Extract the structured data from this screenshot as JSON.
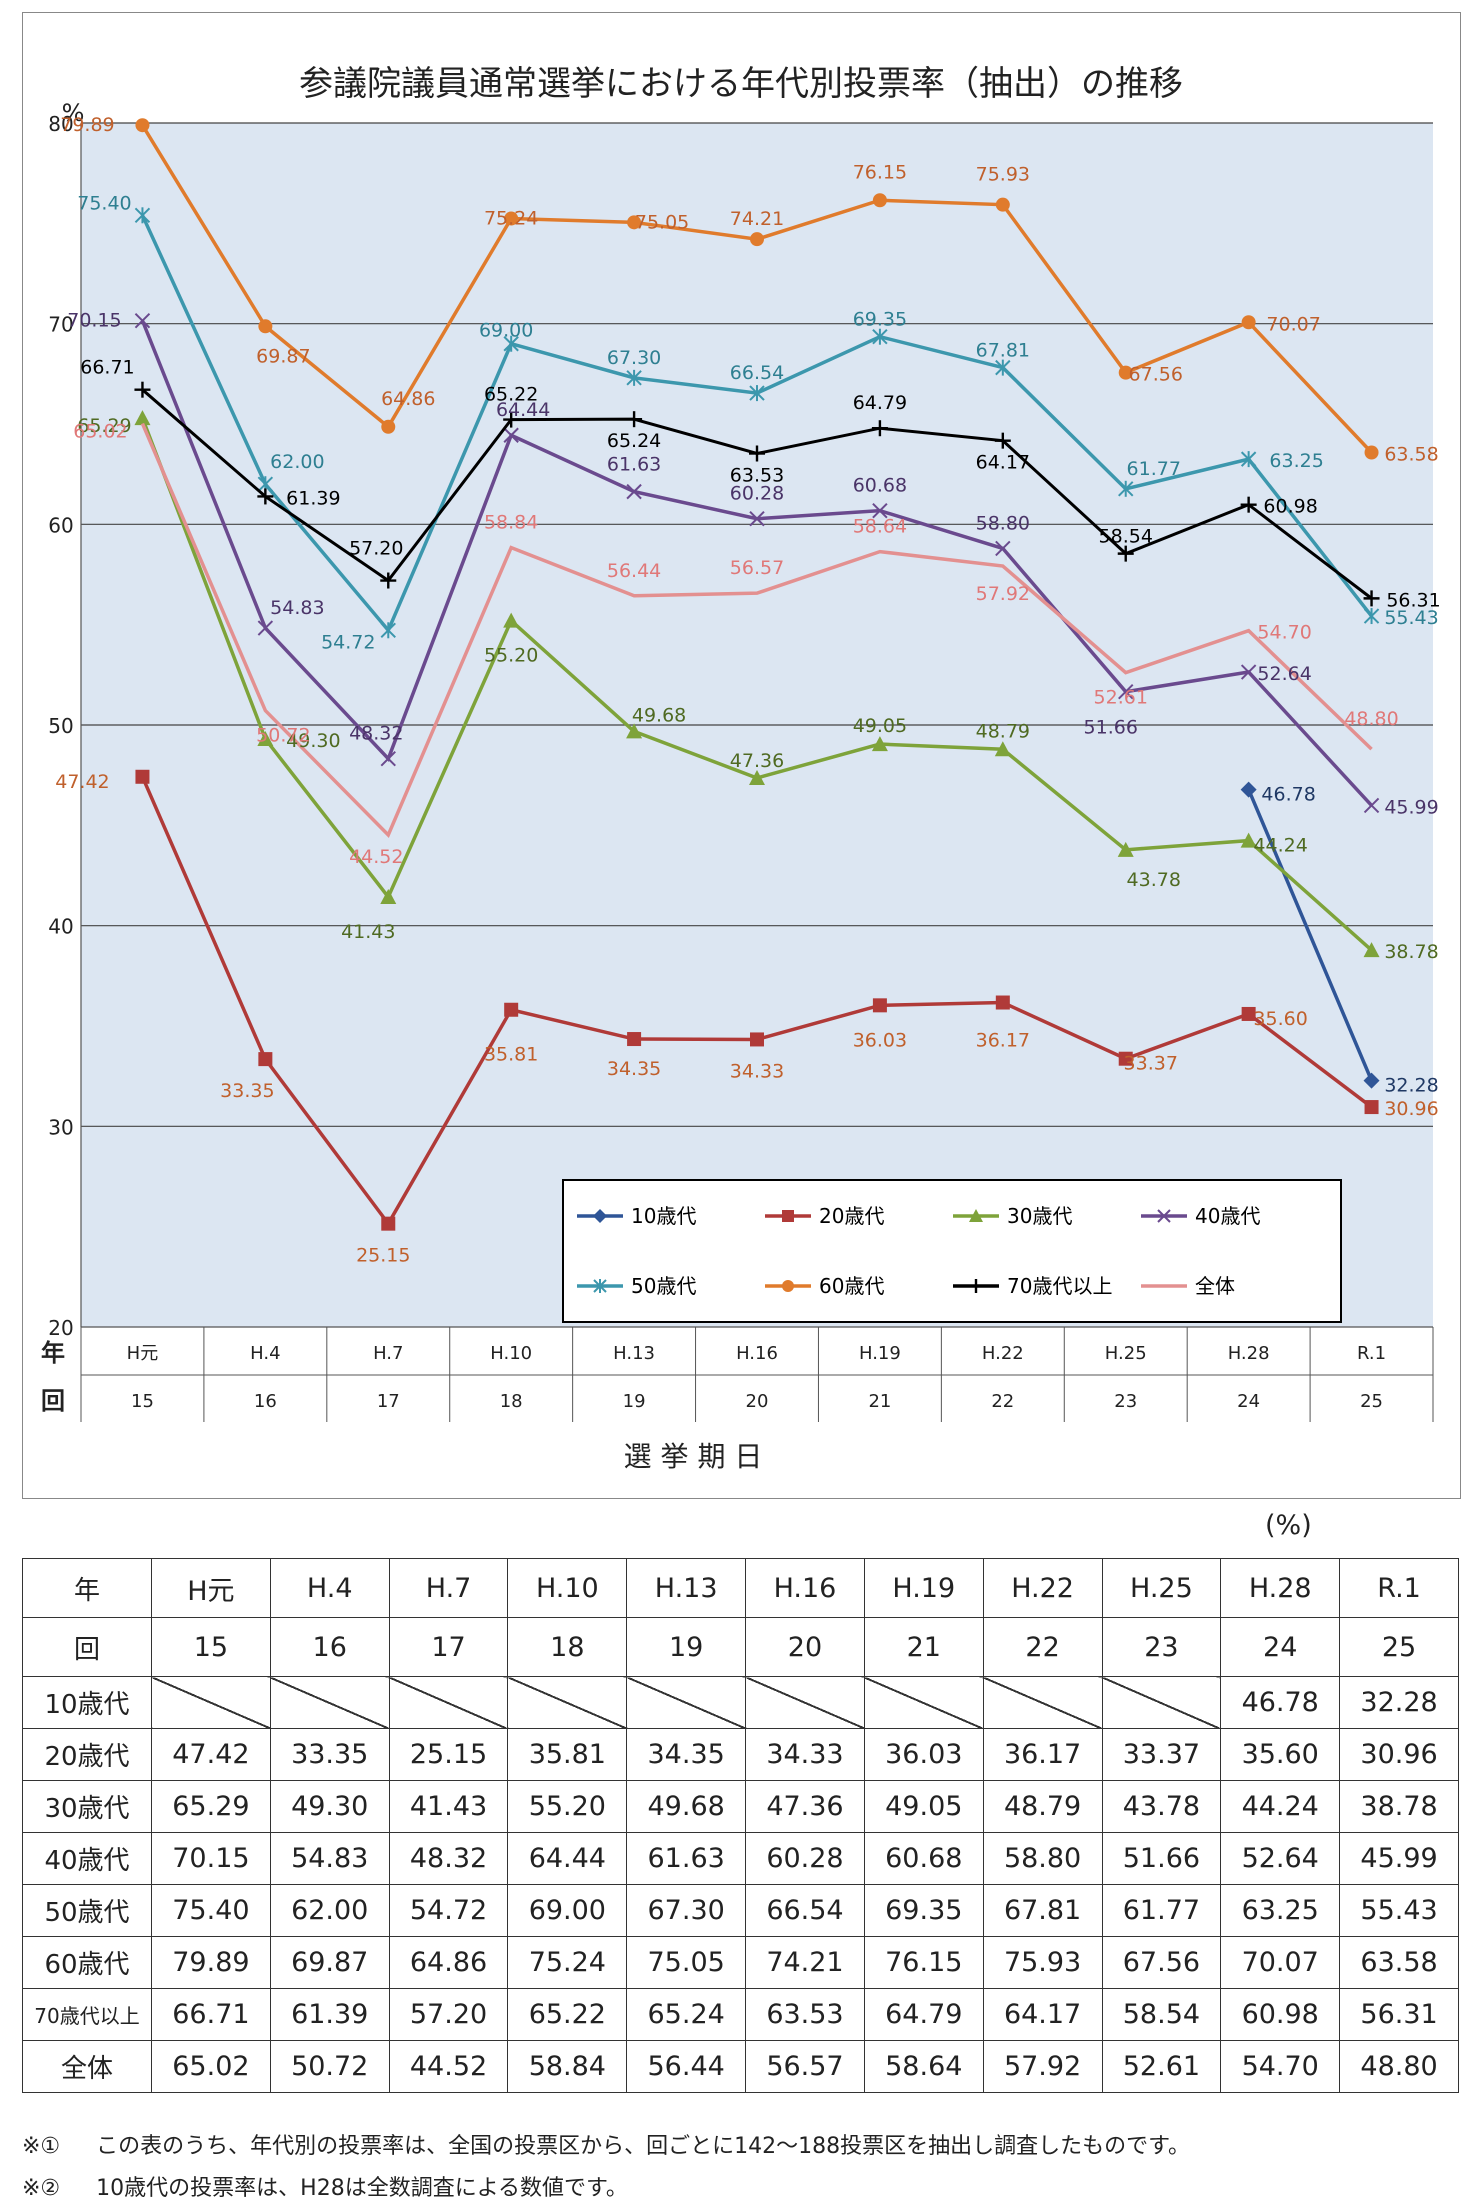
{
  "chart_data": {
    "type": "line",
    "title": "参議院議員通常選挙における年代別投票率（抽出）の推移",
    "y_unit": "%",
    "ylim": [
      20,
      80
    ],
    "yticks": [
      20,
      30,
      40,
      50,
      60,
      70,
      80
    ],
    "grid": true,
    "legend_position": "bottom-right inside",
    "x_row_labels": [
      "年",
      "回"
    ],
    "xlabel": "選 挙 期 日",
    "categories": [
      "H元",
      "H.4",
      "H.7",
      "H.10",
      "H.13",
      "H.16",
      "H.19",
      "H.22",
      "H.25",
      "H.28",
      "R.1"
    ],
    "rounds": [
      "15",
      "16",
      "17",
      "18",
      "19",
      "20",
      "21",
      "22",
      "23",
      "24",
      "25"
    ],
    "series": [
      {
        "name": "10歳代",
        "color": "#2f5597",
        "marker": "diamond",
        "values": [
          null,
          null,
          null,
          null,
          null,
          null,
          null,
          null,
          null,
          46.78,
          32.28
        ]
      },
      {
        "name": "20歳代",
        "color": "#b03a38",
        "marker": "square",
        "values": [
          47.42,
          33.35,
          25.15,
          35.81,
          34.35,
          34.33,
          36.03,
          36.17,
          33.37,
          35.6,
          30.96
        ]
      },
      {
        "name": "30歳代",
        "color": "#7ea33a",
        "marker": "triangle",
        "values": [
          65.29,
          49.3,
          41.43,
          55.2,
          49.68,
          47.36,
          49.05,
          48.79,
          43.78,
          44.24,
          38.78
        ]
      },
      {
        "name": "40歳代",
        "color": "#6a4a8e",
        "marker": "x",
        "values": [
          70.15,
          54.83,
          48.32,
          64.44,
          61.63,
          60.28,
          60.68,
          58.8,
          51.66,
          52.64,
          45.99
        ]
      },
      {
        "name": "50歳代",
        "color": "#3c97ad",
        "marker": "star",
        "values": [
          75.4,
          62.0,
          54.72,
          69.0,
          67.3,
          66.54,
          69.35,
          67.81,
          61.77,
          63.25,
          55.43
        ]
      },
      {
        "name": "60歳代",
        "color": "#e07b2c",
        "marker": "circle",
        "values": [
          79.89,
          69.87,
          64.86,
          75.24,
          75.05,
          74.21,
          76.15,
          75.93,
          67.56,
          70.07,
          63.58
        ]
      },
      {
        "name": "70歳代以上",
        "color": "#000000",
        "marker": "plus",
        "values": [
          66.71,
          61.39,
          57.2,
          65.22,
          65.24,
          63.53,
          64.79,
          64.17,
          58.54,
          60.98,
          56.31
        ]
      },
      {
        "name": "全体",
        "color": "#e39090",
        "marker": "none",
        "values": [
          65.02,
          50.72,
          44.52,
          58.84,
          56.44,
          56.57,
          58.64,
          57.92,
          52.61,
          54.7,
          48.8
        ]
      }
    ],
    "label_colors": {
      "10歳代": "#1f3864",
      "20歳代": "#c0602c",
      "30歳代": "#4f6a22",
      "40歳代": "#4a3468",
      "50歳代": "#2e7f91",
      "60歳代": "#c0602c",
      "70歳代以上": "#000000",
      "全体": "#e07878"
    }
  },
  "table": {
    "unit": "(%)",
    "header_rows": [
      {
        "label": "年",
        "cells": [
          "H元",
          "H.4",
          "H.7",
          "H.10",
          "H.13",
          "H.16",
          "H.19",
          "H.22",
          "H.25",
          "H.28",
          "R.1"
        ]
      },
      {
        "label": "回",
        "cells": [
          "15",
          "16",
          "17",
          "18",
          "19",
          "20",
          "21",
          "22",
          "23",
          "24",
          "25"
        ]
      }
    ],
    "rows": [
      {
        "label": "10歳代",
        "cells": [
          "",
          "",
          "",
          "",
          "",
          "",
          "",
          "",
          "",
          "46.78",
          "32.28"
        ]
      },
      {
        "label": "20歳代",
        "cells": [
          "47.42",
          "33.35",
          "25.15",
          "35.81",
          "34.35",
          "34.33",
          "36.03",
          "36.17",
          "33.37",
          "35.60",
          "30.96"
        ]
      },
      {
        "label": "30歳代",
        "cells": [
          "65.29",
          "49.30",
          "41.43",
          "55.20",
          "49.68",
          "47.36",
          "49.05",
          "48.79",
          "43.78",
          "44.24",
          "38.78"
        ]
      },
      {
        "label": "40歳代",
        "cells": [
          "70.15",
          "54.83",
          "48.32",
          "64.44",
          "61.63",
          "60.28",
          "60.68",
          "58.80",
          "51.66",
          "52.64",
          "45.99"
        ]
      },
      {
        "label": "50歳代",
        "cells": [
          "75.40",
          "62.00",
          "54.72",
          "69.00",
          "67.30",
          "66.54",
          "69.35",
          "67.81",
          "61.77",
          "63.25",
          "55.43"
        ]
      },
      {
        "label": "60歳代",
        "cells": [
          "79.89",
          "69.87",
          "64.86",
          "75.24",
          "75.05",
          "74.21",
          "76.15",
          "75.93",
          "67.56",
          "70.07",
          "63.58"
        ]
      },
      {
        "label": "70歳代以上",
        "cells": [
          "66.71",
          "61.39",
          "57.20",
          "65.22",
          "65.24",
          "63.53",
          "64.79",
          "64.17",
          "58.54",
          "60.98",
          "56.31"
        ]
      },
      {
        "label": "全体",
        "cells": [
          "65.02",
          "50.72",
          "44.52",
          "58.84",
          "56.44",
          "56.57",
          "58.64",
          "57.92",
          "52.61",
          "54.70",
          "48.80"
        ]
      }
    ]
  },
  "notes": {
    "note1_mark": "※①",
    "note1_text": "この表のうち、年代別の投票率は、全国の投票区から、回ごとに142～188投票区を抽出し調査したものです。",
    "note2_mark": "※②",
    "note2_text": "10歳代の投票率は、H28は全数調査による数値です。"
  }
}
